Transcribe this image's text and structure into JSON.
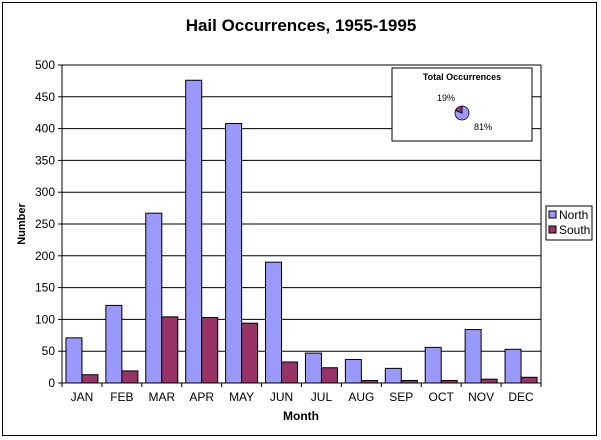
{
  "chart_data": {
    "type": "bar",
    "title": "Hail Occurrences, 1955-1995",
    "xlabel": "Month",
    "ylabel": "Number",
    "ylim": [
      0,
      500
    ],
    "yticks": [
      0,
      50,
      100,
      150,
      200,
      250,
      300,
      350,
      400,
      450,
      500
    ],
    "grid": true,
    "legend_position": "right",
    "categories": [
      "JAN",
      "FEB",
      "MAR",
      "APR",
      "MAY",
      "JUN",
      "JUL",
      "AUG",
      "SEP",
      "OCT",
      "NOV",
      "DEC"
    ],
    "series": [
      {
        "name": "North",
        "color": "#9999ff",
        "values": [
          71,
          122,
          267,
          476,
          408,
          190,
          47,
          37,
          23,
          56,
          84,
          53
        ]
      },
      {
        "name": "South",
        "color": "#993366",
        "values": [
          13,
          19,
          104,
          103,
          94,
          33,
          24,
          4,
          4,
          4,
          6,
          9
        ]
      }
    ],
    "inset": {
      "type": "pie",
      "title": "Total Occurrences",
      "slices": [
        {
          "label": "81%",
          "value": 81,
          "color": "#9999ff"
        },
        {
          "label": "19%",
          "value": 19,
          "color": "#993366"
        }
      ]
    }
  }
}
